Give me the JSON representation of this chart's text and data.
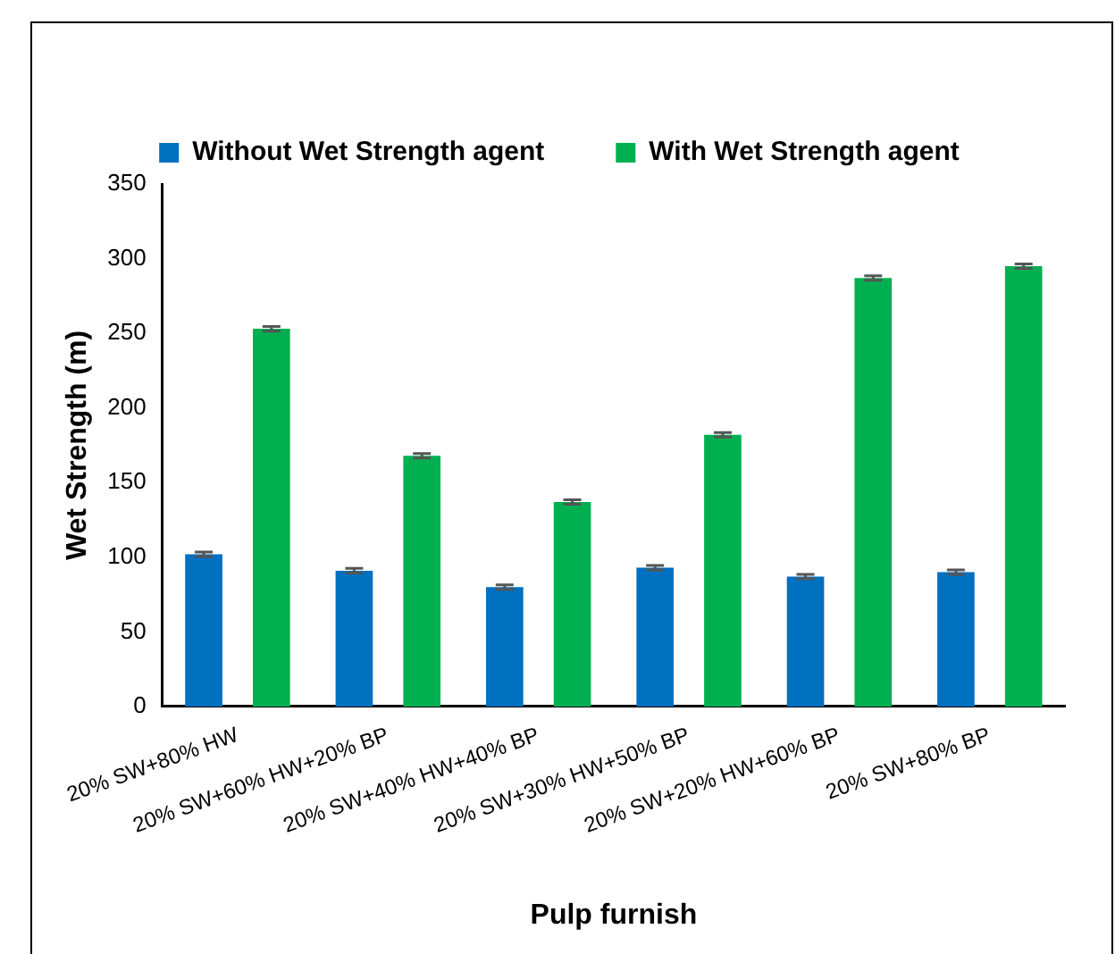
{
  "chart_data": {
    "type": "bar",
    "xlabel": "Pulp furnish",
    "ylabel": "Wet Strength (m)",
    "categories": [
      "20% SW+80% HW",
      "20% SW+60% HW+20% BP",
      "20% SW+40% HW+40% BP",
      "20% SW+30% HW+50% BP",
      "20% SW+20% HW+60% BP",
      "20% SW+80% BP"
    ],
    "series": [
      {
        "name": "Without Wet Strength agent",
        "color": "#0070c0",
        "values": [
          102,
          91,
          80,
          93,
          87,
          90
        ],
        "errors": [
          1.5,
          1.5,
          1.5,
          1.5,
          1.5,
          1.5
        ]
      },
      {
        "name": "With Wet Strength agent",
        "color": "#00b050",
        "values": [
          253,
          168,
          137,
          182,
          287,
          295
        ],
        "errors": [
          1.5,
          1.5,
          1.5,
          1.5,
          1.5,
          1.5
        ]
      }
    ],
    "ylim": [
      0,
      350
    ],
    "yticks": [
      0,
      50,
      100,
      150,
      200,
      250,
      300,
      350
    ],
    "grid": false,
    "legend": "top"
  }
}
